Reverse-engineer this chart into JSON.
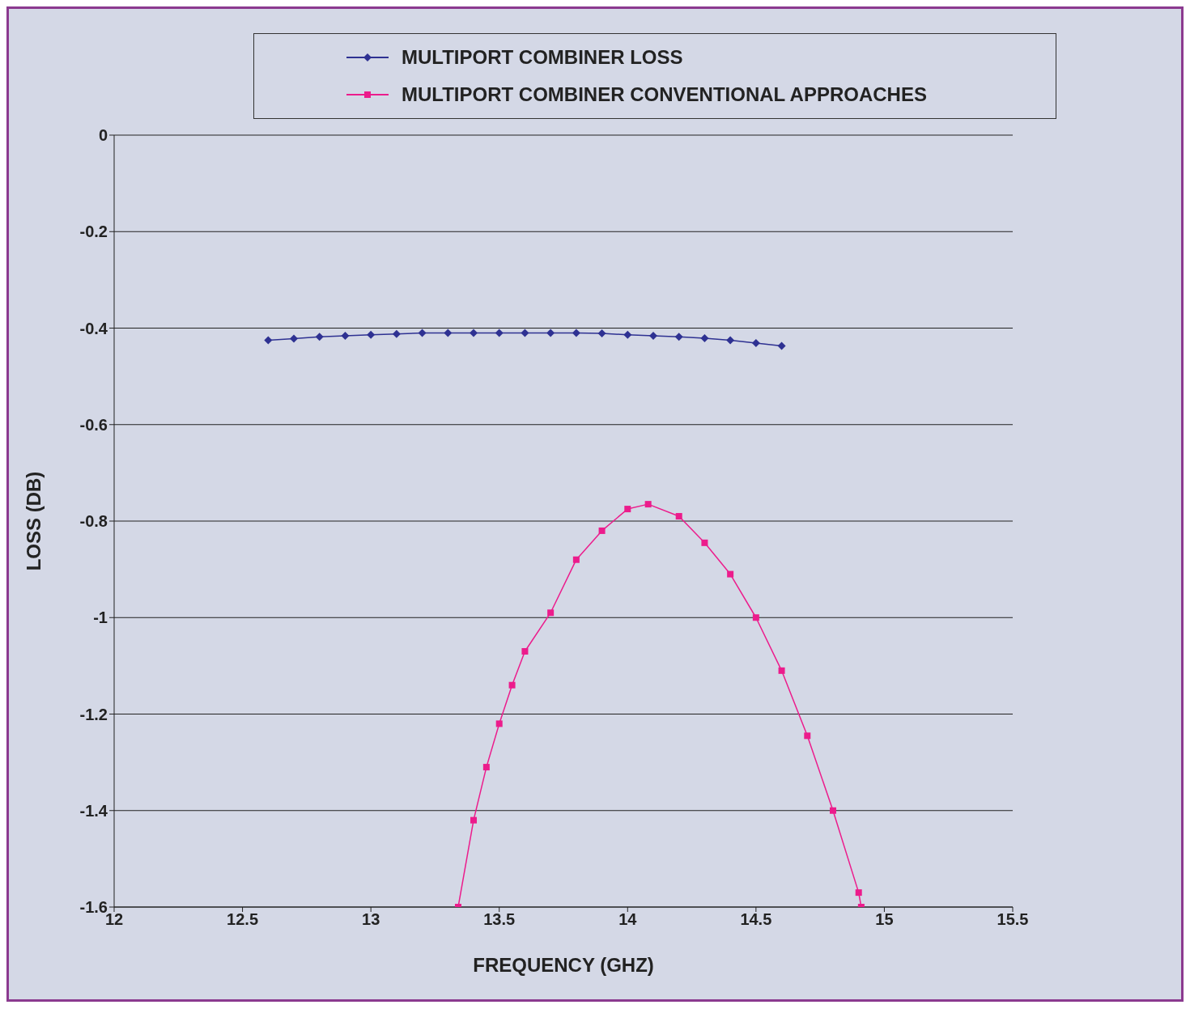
{
  "chart_data": {
    "type": "line",
    "xlabel": "FREQUENCY (GHZ)",
    "ylabel": "LOSS (DB)",
    "xlim": [
      12,
      15.5
    ],
    "xticks": [
      12,
      12.5,
      13,
      13.5,
      14,
      14.5,
      15,
      15.5
    ],
    "ylim": [
      -1.6,
      0
    ],
    "yticks": [
      -1.6,
      -1.4,
      -1.2,
      -1,
      -0.8,
      -0.6,
      -0.4,
      -0.2,
      0
    ],
    "grid": "y",
    "legend": "top",
    "series": [
      {
        "name": "MULTIPORT COMBINER LOSS",
        "color": "#2e3192",
        "marker": "diamond",
        "x": [
          12.6,
          12.7,
          12.8,
          12.9,
          13,
          13.1,
          13.2,
          13.3,
          13.4,
          13.5,
          13.6,
          13.7,
          13.8,
          13.9,
          14,
          14.1,
          14.2,
          14.3,
          14.4,
          14.5,
          14.6
        ],
        "values": [
          -0.425,
          -0.422,
          -0.418,
          -0.416,
          -0.414,
          -0.412,
          -0.41,
          -0.41,
          -0.41,
          -0.41,
          -0.41,
          -0.41,
          -0.41,
          -0.411,
          -0.414,
          -0.416,
          -0.418,
          -0.421,
          -0.425,
          -0.431,
          -0.437
        ]
      },
      {
        "name": "MULTIPORT COMBINER CONVENTIONAL APPROACHES",
        "color": "#ec1c8c",
        "marker": "square",
        "x": [
          13.34,
          13.4,
          13.45,
          13.5,
          13.55,
          13.6,
          13.7,
          13.8,
          13.9,
          14,
          14.08,
          14.2,
          14.3,
          14.4,
          14.5,
          14.6,
          14.7,
          14.8,
          14.9,
          14.91
        ],
        "values": [
          -1.6,
          -1.42,
          -1.31,
          -1.22,
          -1.14,
          -1.07,
          -0.99,
          -0.88,
          -0.82,
          -0.775,
          -0.765,
          -0.79,
          -0.845,
          -0.91,
          -1.0,
          -1.11,
          -1.245,
          -1.4,
          -1.57,
          -1.6
        ]
      }
    ]
  }
}
